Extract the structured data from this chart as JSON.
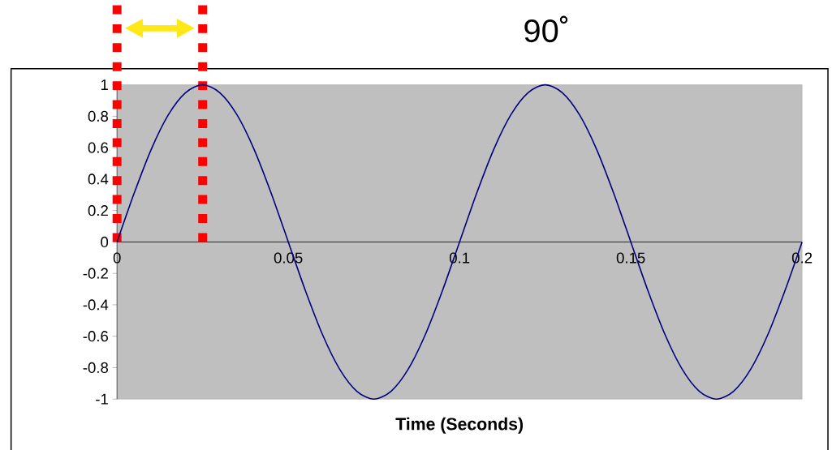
{
  "chart_data": {
    "type": "line",
    "xlabel": "Time (Seconds)",
    "x": [
      0,
      0.005,
      0.01,
      0.015,
      0.02,
      0.025,
      0.03,
      0.035,
      0.04,
      0.045,
      0.05,
      0.055,
      0.06,
      0.065,
      0.07,
      0.075,
      0.08,
      0.085,
      0.09,
      0.095,
      0.1,
      0.105,
      0.11,
      0.115,
      0.12,
      0.125,
      0.13,
      0.135,
      0.14,
      0.145,
      0.15,
      0.155,
      0.16,
      0.165,
      0.17,
      0.175,
      0.18,
      0.185,
      0.19,
      0.195,
      0.2
    ],
    "values": [
      0,
      0.31,
      0.59,
      0.81,
      0.95,
      1,
      0.95,
      0.81,
      0.59,
      0.31,
      0,
      -0.31,
      -0.59,
      -0.81,
      -0.95,
      -1,
      -0.95,
      -0.81,
      -0.59,
      -0.31,
      0,
      0.31,
      0.59,
      0.81,
      0.95,
      1,
      0.95,
      0.81,
      0.59,
      0.31,
      0,
      -0.31,
      -0.59,
      -0.81,
      -0.95,
      -1,
      -0.95,
      -0.81,
      -0.59,
      -0.31,
      0
    ],
    "color": "#000080",
    "line_style": "solid",
    "xlim": [
      0,
      0.2
    ],
    "ylim": [
      -1,
      1
    ],
    "xticks": [
      0,
      0.05,
      0.1,
      0.15,
      0.2
    ],
    "yticks": [
      -1,
      -0.8,
      -0.6,
      -0.4,
      -0.2,
      0,
      0.2,
      0.4,
      0.6,
      0.8,
      1
    ],
    "ref_lines": [
      {
        "axis": "x",
        "value": 0,
        "color": "#ff0000",
        "line_style": "dotted"
      },
      {
        "axis": "x",
        "value": 0.025,
        "color": "#ff0000",
        "line_style": "dotted"
      }
    ],
    "annotations": [
      "90˚"
    ]
  }
}
